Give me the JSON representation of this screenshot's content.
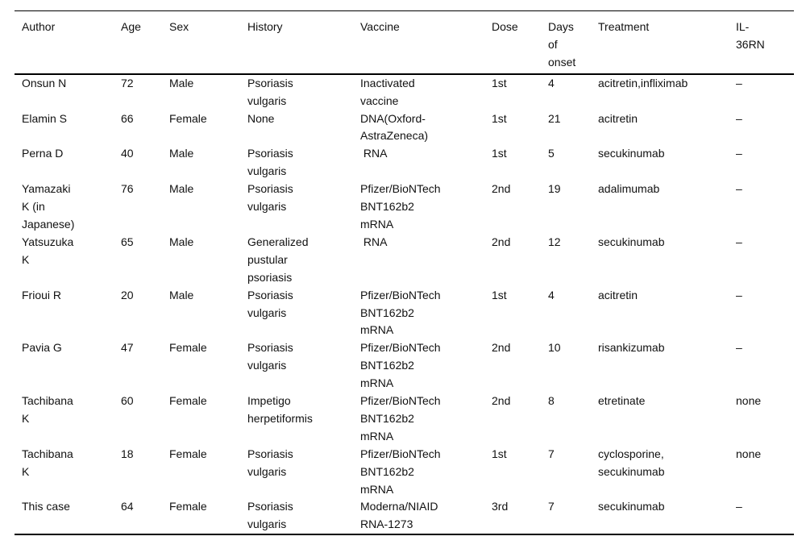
{
  "table": {
    "columns": [
      {
        "key": "author",
        "label": "Author"
      },
      {
        "key": "age",
        "label": "Age"
      },
      {
        "key": "sex",
        "label": "Sex"
      },
      {
        "key": "history",
        "label": "History"
      },
      {
        "key": "vaccine",
        "label": "Vaccine"
      },
      {
        "key": "dose",
        "label": "Dose"
      },
      {
        "key": "days",
        "label": "Days\nof\nonset"
      },
      {
        "key": "treatment",
        "label": "Treatment"
      },
      {
        "key": "il36rn",
        "label": "IL-\n36RN"
      }
    ],
    "rows": [
      {
        "author": "Onsun N",
        "age": "72",
        "sex": "Male",
        "history": "Psoriasis\nvulgaris",
        "vaccine": "Inactivated\nvaccine",
        "dose": "1st",
        "days": "4",
        "treatment": "acitretin,infliximab",
        "il36rn": "–"
      },
      {
        "author": "Elamin S",
        "age": "66",
        "sex": "Female",
        "history": "None",
        "vaccine": "DNA(Oxford-\nAstraZeneca)",
        "dose": "1st",
        "days": "21",
        "treatment": "acitretin",
        "il36rn": "–"
      },
      {
        "author": "Perna D",
        "age": "40",
        "sex": "Male",
        "history": "Psoriasis\nvulgaris",
        "vaccine": " RNA",
        "dose": "1st",
        "days": "5",
        "treatment": "secukinumab",
        "il36rn": "–"
      },
      {
        "author": "Yamazaki\nK (in\nJapanese)",
        "age": "76",
        "sex": "Male",
        "history": "Psoriasis\nvulgaris",
        "vaccine": "Pfizer/BioNTech\nBNT162b2\nmRNA",
        "dose": "2nd",
        "days": "19",
        "treatment": "adalimumab",
        "il36rn": "–"
      },
      {
        "author": "Yatsuzuka\nK",
        "age": "65",
        "sex": "Male",
        "history": "Generalized\npustular\npsoriasis",
        "vaccine": " RNA",
        "dose": "2nd",
        "days": "12",
        "treatment": "secukinumab",
        "il36rn": "–"
      },
      {
        "author": "Frioui R",
        "age": "20",
        "sex": "Male",
        "history": "Psoriasis\nvulgaris",
        "vaccine": "Pfizer/BioNTech\nBNT162b2\nmRNA",
        "dose": "1st",
        "days": "4",
        "treatment": "acitretin",
        "il36rn": "–"
      },
      {
        "author": "Pavia G",
        "age": "47",
        "sex": "Female",
        "history": "Psoriasis\nvulgaris",
        "vaccine": "Pfizer/BioNTech\nBNT162b2\nmRNA",
        "dose": "2nd",
        "days": "10",
        "treatment": "risankizumab",
        "il36rn": "–"
      },
      {
        "author": "Tachibana\nK",
        "age": "60",
        "sex": "Female",
        "history": "Impetigo\nherpetiformis",
        "vaccine": "Pfizer/BioNTech\nBNT162b2\nmRNA",
        "dose": "2nd",
        "days": "8",
        "treatment": "etretinate",
        "il36rn": "none"
      },
      {
        "author": "Tachibana\nK",
        "age": "18",
        "sex": "Female",
        "history": "Psoriasis\nvulgaris",
        "vaccine": "Pfizer/BioNTech\nBNT162b2\nmRNA",
        "dose": "1st",
        "days": "7",
        "treatment": "cyclosporine,\nsecukinumab",
        "il36rn": "none"
      },
      {
        "author": "This case",
        "age": "64",
        "sex": "Female",
        "history": "Psoriasis\nvulgaris",
        "vaccine": "Moderna/NIAID\nRNA-1273",
        "dose": "3rd",
        "days": "7",
        "treatment": "secukinumab",
        "il36rn": "–"
      }
    ]
  }
}
